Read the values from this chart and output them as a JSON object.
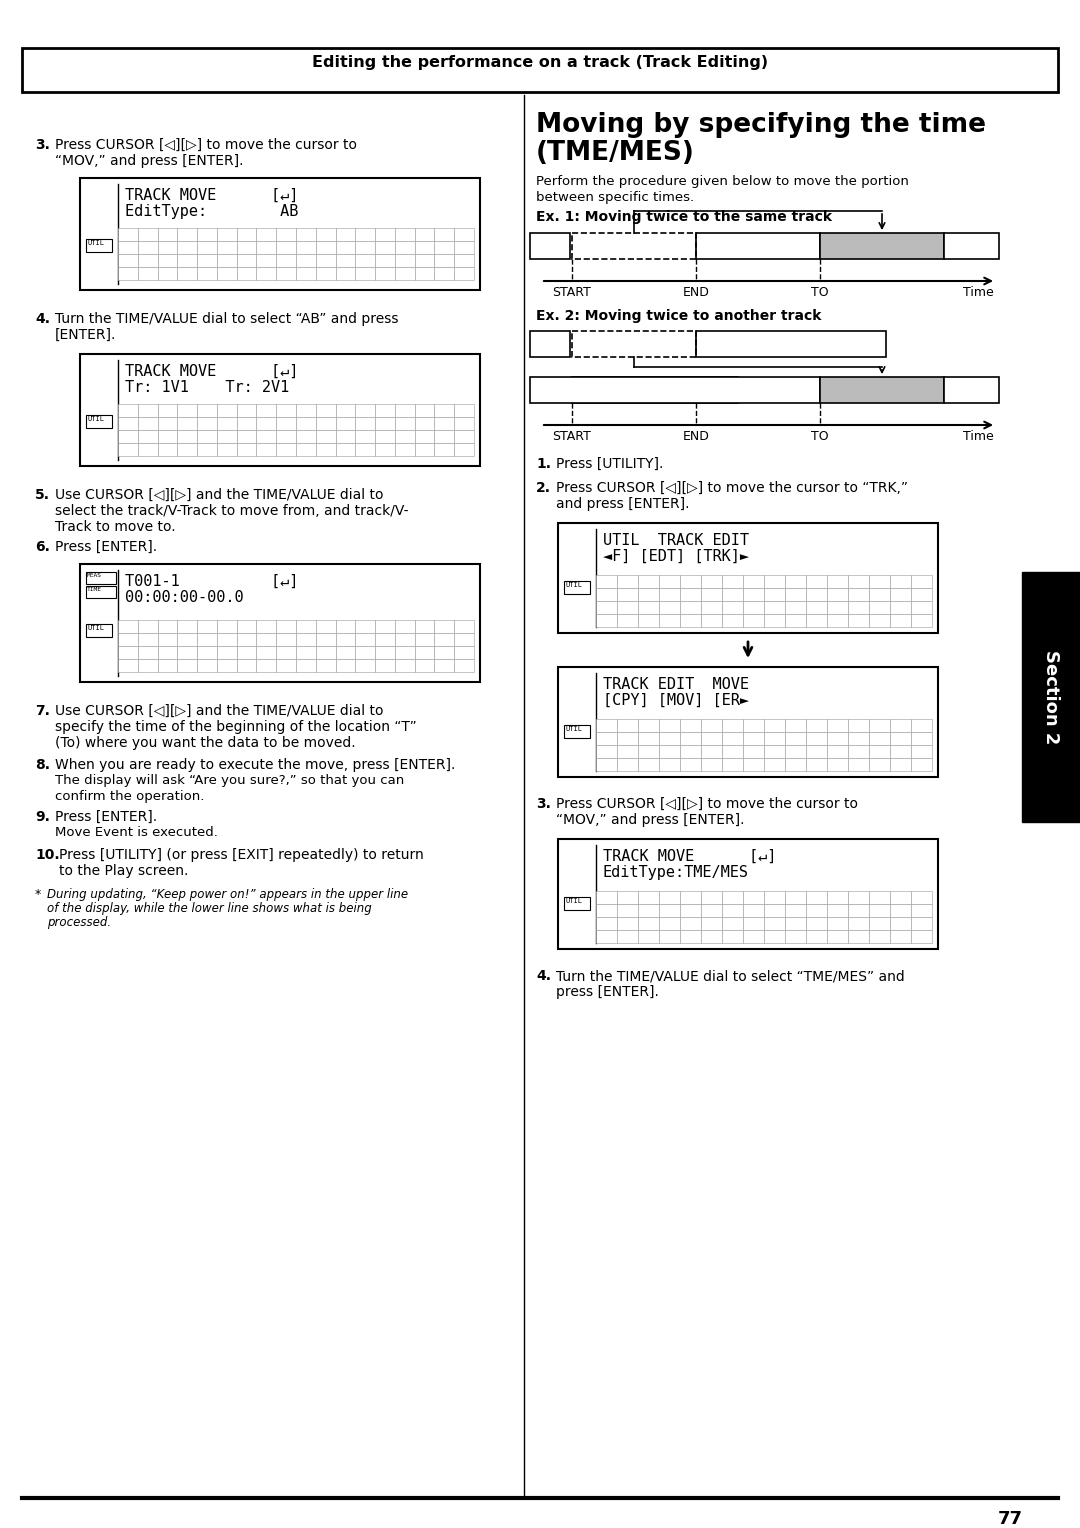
{
  "title_header": "Editing the performance on a track (Track Editing)",
  "page_number": "77",
  "section_label": "Section 2",
  "bg_color": "#ffffff",
  "left": {
    "step3_a": "3.   Press CURSOR [◁][▷] to move the cursor to",
    "step3_b": "     “MOV,” and press [ENTER].",
    "lcd1_line1": "TRACK MOVE      [↵]",
    "lcd1_line2": "EditType:        AB",
    "step4_a": "4.   Turn the TIME/VALUE dial to select “AB” and press",
    "step4_b": "     [ENTER].",
    "lcd2_line1": "TRACK MOVE      [↵]",
    "lcd2_line2": "Tr: 1V1    Tr: 2V1",
    "step5_a": "5.   Use CURSOR [◁][▷] and the TIME/VALUE dial to",
    "step5_b": "     select the track/V-Track to move from, and track/V-",
    "step5_c": "     Track to move to.",
    "step6": "6.   Press [ENTER].",
    "lcd3_l1": "T001-1          [↵]",
    "lcd3_l2": "00:00:00-00.0",
    "step7_a": "7.   Use CURSOR [◁][▷] and the TIME/VALUE dial to",
    "step7_b": "     specify the time of the beginning of the location “T”",
    "step7_c": "     (To) where you want the data to be moved.",
    "step8_a": "8.   When you are ready to execute the move, press [ENTER].",
    "step8_b": "     The display will ask “Are you sure?,” so that you can",
    "step8_c": "     confirm the operation.",
    "step9": "9.   Press [ENTER].",
    "step9_sub": "     Move Event is executed.",
    "step10_a": "10.  Press [UTILITY] (or press [EXIT] repeatedly) to return",
    "step10_b": "     to the Play screen.",
    "note_a": "* During updating, “Keep power on!” appears in the upper line",
    "note_b": "  of the display, while the lower line shows what is being",
    "note_c": "  processed."
  },
  "right": {
    "title1": "Moving by specifying the time",
    "title2": "(TME/MES)",
    "intro1": "Perform the procedure given below to move the portion",
    "intro2": "between specific times.",
    "ex1_label": "Ex. 1: Moving twice to the same track",
    "ex2_label": "Ex. 2: Moving twice to another track",
    "step1": "1.   Press [UTILITY].",
    "step2_a": "2.   Press CURSOR [◁][▷] to move the cursor to “TRK,”",
    "step2_b": "     and press [ENTER].",
    "lcd_r1_l1": "UTIL  TRACK EDIT",
    "lcd_r1_l2": "◄F] [EDT] [TRK]►",
    "lcd_r2_l1": "TRACK EDIT  MOVE",
    "lcd_r2_l2": "[CPY] [MOV] [ER►",
    "step3_a": "3.   Press CURSOR [◁][▷] to move the cursor to",
    "step3_b": "     “MOV,” and press [ENTER].",
    "lcd_r3_l1": "TRACK MOVE      [↵]",
    "lcd_r3_l2": "EditType:TME/MES",
    "step4_a": "4.   Turn the TIME/VALUE dial to select “TME/MES” and",
    "step4_b": "     press [ENTER]."
  }
}
